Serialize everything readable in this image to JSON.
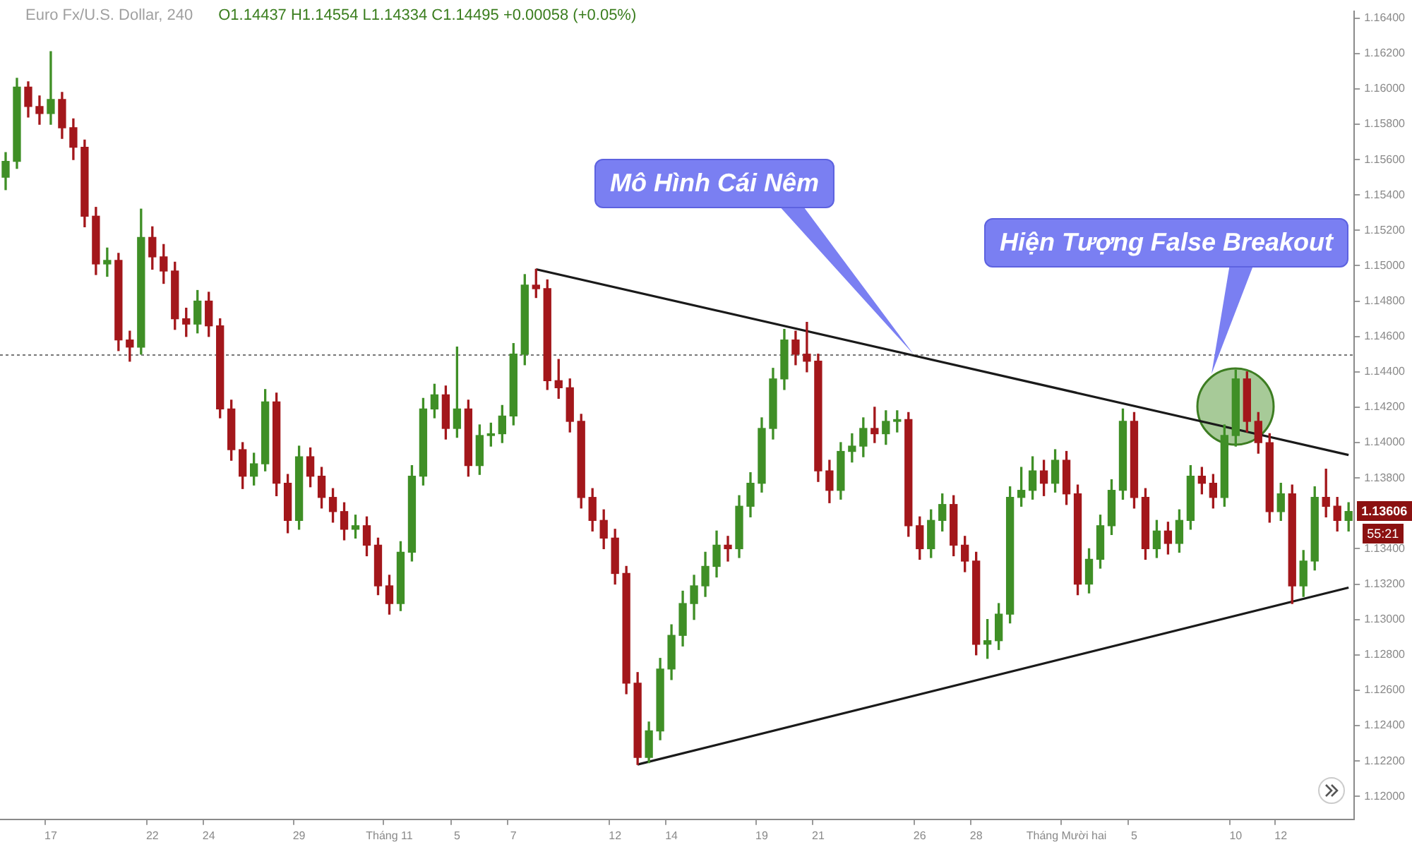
{
  "chart_data": {
    "type": "candlestick",
    "title": "Euro Fx/U.S. Dollar, 240",
    "subtitle": "O1.14437 H1.14554 L1.14334 C1.14495 +0.00058 (+0.05%)",
    "categories": [
      null,
      null,
      null,
      null,
      "17",
      null,
      null,
      null,
      null,
      null,
      null,
      null,
      null,
      "22",
      null,
      null,
      null,
      null,
      "24",
      null,
      null,
      null,
      null,
      null,
      null,
      null,
      "29",
      null,
      null,
      null,
      null,
      null,
      null,
      null,
      "Tháng 11",
      null,
      null,
      null,
      null,
      null,
      "5",
      null,
      null,
      null,
      null,
      "7",
      null,
      null,
      null,
      null,
      null,
      null,
      null,
      null,
      "12",
      null,
      null,
      null,
      null,
      "14",
      null,
      null,
      null,
      null,
      null,
      null,
      null,
      "19",
      null,
      null,
      null,
      null,
      "21",
      null,
      null,
      null,
      null,
      null,
      null,
      null,
      null,
      "26",
      null,
      null,
      null,
      null,
      "28",
      null,
      null,
      null,
      null,
      null,
      null,
      null,
      "Tháng Mười hai",
      null,
      null,
      null,
      null,
      null,
      "5",
      null,
      null,
      null,
      null,
      null,
      null,
      null,
      null,
      "10",
      null,
      null,
      null,
      "12",
      null,
      null,
      null,
      null,
      null,
      null
    ],
    "ohlc": [
      [
        1.155,
        1.1564,
        1.1543,
        1.1559
      ],
      [
        1.1559,
        1.1606,
        1.1555,
        1.1601
      ],
      [
        1.1601,
        1.1604,
        1.1584,
        1.159
      ],
      [
        1.159,
        1.1596,
        1.158,
        1.1586
      ],
      [
        1.1586,
        1.1621,
        1.158,
        1.1594
      ],
      [
        1.1594,
        1.1598,
        1.1572,
        1.1578
      ],
      [
        1.1578,
        1.1583,
        1.156,
        1.1567
      ],
      [
        1.1567,
        1.1571,
        1.1522,
        1.1528
      ],
      [
        1.1528,
        1.1533,
        1.1495,
        1.1501
      ],
      [
        1.1501,
        1.151,
        1.1494,
        1.1503
      ],
      [
        1.1503,
        1.1507,
        1.1452,
        1.1458
      ],
      [
        1.1458,
        1.1463,
        1.1446,
        1.1454
      ],
      [
        1.1454,
        1.1532,
        1.145,
        1.1516
      ],
      [
        1.1516,
        1.1522,
        1.1498,
        1.1505
      ],
      [
        1.1505,
        1.1512,
        1.149,
        1.1497
      ],
      [
        1.1497,
        1.1502,
        1.1464,
        1.147
      ],
      [
        1.147,
        1.1476,
        1.146,
        1.1467
      ],
      [
        1.1467,
        1.1486,
        1.1462,
        1.148
      ],
      [
        1.148,
        1.1485,
        1.146,
        1.1466
      ],
      [
        1.1466,
        1.147,
        1.1414,
        1.1419
      ],
      [
        1.1419,
        1.1424,
        1.139,
        1.1396
      ],
      [
        1.1396,
        1.14,
        1.1374,
        1.1381
      ],
      [
        1.1381,
        1.1394,
        1.1376,
        1.1388
      ],
      [
        1.1388,
        1.143,
        1.1384,
        1.1423
      ],
      [
        1.1423,
        1.1428,
        1.137,
        1.1377
      ],
      [
        1.1377,
        1.1382,
        1.1349,
        1.1356
      ],
      [
        1.1356,
        1.1398,
        1.1351,
        1.1392
      ],
      [
        1.1392,
        1.1397,
        1.1375,
        1.1381
      ],
      [
        1.1381,
        1.1386,
        1.1363,
        1.1369
      ],
      [
        1.1369,
        1.1374,
        1.1355,
        1.1361
      ],
      [
        1.1361,
        1.1366,
        1.1345,
        1.1351
      ],
      [
        1.1351,
        1.1359,
        1.1346,
        1.1353
      ],
      [
        1.1353,
        1.1358,
        1.1336,
        1.1342
      ],
      [
        1.1342,
        1.1346,
        1.1314,
        1.1319
      ],
      [
        1.1319,
        1.1325,
        1.1303,
        1.1309
      ],
      [
        1.1309,
        1.1344,
        1.1305,
        1.1338
      ],
      [
        1.1338,
        1.1387,
        1.1333,
        1.1381
      ],
      [
        1.1381,
        1.1425,
        1.1376,
        1.1419
      ],
      [
        1.1419,
        1.1433,
        1.1414,
        1.1427
      ],
      [
        1.1427,
        1.1432,
        1.1402,
        1.1408
      ],
      [
        1.1408,
        1.1454,
        1.1403,
        1.1419
      ],
      [
        1.1419,
        1.1424,
        1.1381,
        1.1387
      ],
      [
        1.1387,
        1.141,
        1.1382,
        1.1404
      ],
      [
        1.1404,
        1.1411,
        1.1398,
        1.1405
      ],
      [
        1.1405,
        1.1421,
        1.14,
        1.1415
      ],
      [
        1.1415,
        1.1456,
        1.141,
        1.145
      ],
      [
        1.145,
        1.1495,
        1.1444,
        1.1489
      ],
      [
        1.1489,
        1.1498,
        1.1482,
        1.1487
      ],
      [
        1.1487,
        1.1492,
        1.143,
        1.1435
      ],
      [
        1.1435,
        1.1447,
        1.1425,
        1.1431
      ],
      [
        1.1431,
        1.1436,
        1.1406,
        1.1412
      ],
      [
        1.1412,
        1.1416,
        1.1363,
        1.1369
      ],
      [
        1.1369,
        1.1374,
        1.135,
        1.1356
      ],
      [
        1.1356,
        1.1362,
        1.134,
        1.1346
      ],
      [
        1.1346,
        1.1351,
        1.132,
        1.1326
      ],
      [
        1.1326,
        1.133,
        1.1258,
        1.1264
      ],
      [
        1.1264,
        1.127,
        1.1218,
        1.1222
      ],
      [
        1.1222,
        1.1242,
        1.1219,
        1.1237
      ],
      [
        1.1237,
        1.1278,
        1.1232,
        1.1272
      ],
      [
        1.1272,
        1.1297,
        1.1266,
        1.1291
      ],
      [
        1.1291,
        1.1316,
        1.1285,
        1.1309
      ],
      [
        1.1309,
        1.1325,
        1.13,
        1.1319
      ],
      [
        1.1319,
        1.1338,
        1.1313,
        1.133
      ],
      [
        1.133,
        1.135,
        1.1324,
        1.1342
      ],
      [
        1.1342,
        1.1347,
        1.1333,
        1.134
      ],
      [
        1.134,
        1.137,
        1.1335,
        1.1364
      ],
      [
        1.1364,
        1.1383,
        1.1358,
        1.1377
      ],
      [
        1.1377,
        1.1414,
        1.1372,
        1.1408
      ],
      [
        1.1408,
        1.1442,
        1.1402,
        1.1436
      ],
      [
        1.1436,
        1.1464,
        1.143,
        1.1458
      ],
      [
        1.1458,
        1.1463,
        1.1444,
        1.145
      ],
      [
        1.145,
        1.1468,
        1.144,
        1.1446
      ],
      [
        1.1446,
        1.145,
        1.1378,
        1.1384
      ],
      [
        1.1384,
        1.139,
        1.1366,
        1.1373
      ],
      [
        1.1373,
        1.14,
        1.1368,
        1.1395
      ],
      [
        1.1395,
        1.1405,
        1.1389,
        1.1398
      ],
      [
        1.1398,
        1.1414,
        1.1392,
        1.1408
      ],
      [
        1.1408,
        1.142,
        1.14,
        1.1405
      ],
      [
        1.1405,
        1.1418,
        1.1399,
        1.1412
      ],
      [
        1.1412,
        1.1418,
        1.1406,
        1.1413
      ],
      [
        1.1413,
        1.1417,
        1.1347,
        1.1353
      ],
      [
        1.1353,
        1.1358,
        1.1334,
        1.134
      ],
      [
        1.134,
        1.1362,
        1.1335,
        1.1356
      ],
      [
        1.1356,
        1.1371,
        1.135,
        1.1365
      ],
      [
        1.1365,
        1.137,
        1.1336,
        1.1342
      ],
      [
        1.1342,
        1.1347,
        1.1327,
        1.1333
      ],
      [
        1.1333,
        1.1338,
        1.128,
        1.1286
      ],
      [
        1.1286,
        1.13,
        1.1278,
        1.1288
      ],
      [
        1.1288,
        1.1309,
        1.1283,
        1.1303
      ],
      [
        1.1303,
        1.1375,
        1.1298,
        1.1369
      ],
      [
        1.1369,
        1.1386,
        1.1364,
        1.1373
      ],
      [
        1.1373,
        1.1392,
        1.1368,
        1.1384
      ],
      [
        1.1384,
        1.139,
        1.137,
        1.1377
      ],
      [
        1.1377,
        1.1396,
        1.1372,
        1.139
      ],
      [
        1.139,
        1.1395,
        1.1365,
        1.1371
      ],
      [
        1.1371,
        1.1376,
        1.1314,
        1.132
      ],
      [
        1.132,
        1.134,
        1.1315,
        1.1334
      ],
      [
        1.1334,
        1.1359,
        1.1329,
        1.1353
      ],
      [
        1.1353,
        1.1379,
        1.1348,
        1.1373
      ],
      [
        1.1373,
        1.1419,
        1.1368,
        1.1412
      ],
      [
        1.1412,
        1.1417,
        1.1363,
        1.1369
      ],
      [
        1.1369,
        1.1374,
        1.1334,
        1.134
      ],
      [
        1.134,
        1.1356,
        1.1335,
        1.135
      ],
      [
        1.135,
        1.1355,
        1.1337,
        1.1343
      ],
      [
        1.1343,
        1.1362,
        1.1338,
        1.1356
      ],
      [
        1.1356,
        1.1387,
        1.1351,
        1.1381
      ],
      [
        1.1381,
        1.1386,
        1.1371,
        1.1377
      ],
      [
        1.1377,
        1.1382,
        1.1363,
        1.1369
      ],
      [
        1.1369,
        1.141,
        1.1364,
        1.1404
      ],
      [
        1.1404,
        1.1441,
        1.1398,
        1.1436
      ],
      [
        1.1436,
        1.144,
        1.1406,
        1.1412
      ],
      [
        1.1412,
        1.1417,
        1.1394,
        1.14
      ],
      [
        1.14,
        1.1405,
        1.1355,
        1.1361
      ],
      [
        1.1361,
        1.1377,
        1.1356,
        1.1371
      ],
      [
        1.1371,
        1.1376,
        1.1309,
        1.1319
      ],
      [
        1.1319,
        1.1339,
        1.1313,
        1.1333
      ],
      [
        1.1333,
        1.1375,
        1.1328,
        1.1369
      ],
      [
        1.1369,
        1.1385,
        1.1358,
        1.1364
      ],
      [
        1.1364,
        1.1369,
        1.135,
        1.1356
      ],
      [
        1.1356,
        1.1366,
        1.135,
        1.1361
      ]
    ],
    "colors": [
      "#3f8f26",
      "#3f8f26",
      "#a3171b",
      "#a3171b",
      "#3f8f26",
      "#a3171b",
      "#a3171b",
      "#a3171b",
      "#a3171b",
      "#3f8f26",
      "#a3171b",
      "#a3171b",
      "#3f8f26",
      "#a3171b",
      "#a3171b",
      "#a3171b",
      "#a3171b",
      "#3f8f26",
      "#a3171b",
      "#a3171b",
      "#a3171b",
      "#a3171b",
      "#3f8f26",
      "#3f8f26",
      "#a3171b",
      "#a3171b",
      "#3f8f26",
      "#a3171b",
      "#a3171b",
      "#a3171b",
      "#a3171b",
      "#3f8f26",
      "#a3171b",
      "#a3171b",
      "#a3171b",
      "#3f8f26",
      "#3f8f26",
      "#3f8f26",
      "#3f8f26",
      "#a3171b",
      "#3f8f26",
      "#a3171b",
      "#3f8f26",
      "#3f8f26",
      "#3f8f26",
      "#3f8f26",
      "#3f8f26",
      "#a3171b",
      "#a3171b",
      "#a3171b",
      "#a3171b",
      "#a3171b",
      "#a3171b",
      "#a3171b",
      "#a3171b",
      "#a3171b",
      "#a3171b",
      "#3f8f26",
      "#3f8f26",
      "#3f8f26",
      "#3f8f26",
      "#3f8f26",
      "#3f8f26",
      "#3f8f26",
      "#a3171b",
      "#3f8f26",
      "#3f8f26",
      "#3f8f26",
      "#3f8f26",
      "#3f8f26",
      "#a3171b",
      "#a3171b",
      "#a3171b",
      "#a3171b",
      "#3f8f26",
      "#3f8f26",
      "#3f8f26",
      "#a3171b",
      "#3f8f26",
      "#3f8f26",
      "#a3171b",
      "#a3171b",
      "#3f8f26",
      "#3f8f26",
      "#a3171b",
      "#a3171b",
      "#a3171b",
      "#3f8f26",
      "#3f8f26",
      "#3f8f26",
      "#3f8f26",
      "#3f8f26",
      "#a3171b",
      "#3f8f26",
      "#a3171b",
      "#a3171b",
      "#3f8f26",
      "#3f8f26",
      "#3f8f26",
      "#3f8f26",
      "#a3171b",
      "#a3171b",
      "#3f8f26",
      "#a3171b",
      "#3f8f26",
      "#3f8f26",
      "#a3171b",
      "#a3171b",
      "#3f8f26",
      "#3f8f26",
      "#a3171b",
      "#a3171b",
      "#a3171b",
      "#3f8f26",
      "#a3171b",
      "#3f8f26",
      "#3f8f26",
      "#a3171b",
      "#a3171b",
      "#3f8f26"
    ],
    "series": [
      {
        "type": "line",
        "values": [
          null,
          null,
          null,
          null,
          null,
          null,
          null,
          null,
          null,
          null,
          null,
          null,
          null,
          null,
          null,
          null,
          null,
          null,
          null,
          null,
          null,
          null,
          null,
          null,
          null,
          null,
          null,
          null,
          null,
          null,
          null,
          null,
          null,
          null,
          null,
          null,
          null,
          null,
          null,
          null,
          null,
          null,
          null,
          null,
          null,
          null,
          null,
          1.1498,
          null,
          null,
          null,
          null,
          null,
          null,
          null,
          null,
          null,
          null,
          null,
          null,
          null,
          null,
          null,
          null,
          null,
          null,
          null,
          null,
          null,
          null,
          null,
          null,
          null,
          null,
          null,
          null,
          null,
          null,
          null,
          null,
          null,
          null,
          null,
          null,
          null,
          null,
          null,
          null,
          null,
          null,
          null,
          null,
          null,
          null,
          null,
          null,
          null,
          null,
          null,
          null,
          null,
          null,
          null,
          null,
          null,
          null,
          null,
          null,
          null,
          null,
          null,
          null,
          null,
          null,
          null,
          null,
          null,
          null,
          null,
          1.1393
        ],
        "color": "#1a1a1a"
      },
      {
        "type": "line",
        "values": [
          null,
          null,
          null,
          null,
          null,
          null,
          null,
          null,
          null,
          null,
          null,
          null,
          null,
          null,
          null,
          null,
          null,
          null,
          null,
          null,
          null,
          null,
          null,
          null,
          null,
          null,
          null,
          null,
          null,
          null,
          null,
          null,
          null,
          null,
          null,
          null,
          null,
          null,
          null,
          null,
          null,
          null,
          null,
          null,
          null,
          null,
          null,
          null,
          null,
          null,
          null,
          null,
          null,
          null,
          null,
          null,
          1.1218,
          null,
          null,
          null,
          null,
          null,
          null,
          null,
          null,
          null,
          null,
          null,
          null,
          null,
          null,
          null,
          null,
          null,
          null,
          null,
          null,
          null,
          null,
          null,
          null,
          null,
          null,
          null,
          null,
          null,
          null,
          null,
          null,
          null,
          null,
          null,
          null,
          null,
          null,
          null,
          null,
          null,
          null,
          null,
          null,
          null,
          null,
          null,
          null,
          null,
          null,
          null,
          null,
          null,
          null,
          null,
          null,
          null,
          null,
          null,
          null,
          null,
          null,
          1.1318
        ],
        "color": "#1a1a1a"
      }
    ],
    "marker": "none",
    "line_style": "solid",
    "ylim": [
      1.1187,
      1.1644
    ],
    "yticks": [
      {
        "value": 1.12,
        "label": "1.12000"
      },
      {
        "value": 1.122,
        "label": "1.12200"
      },
      {
        "value": 1.124,
        "label": "1.12400"
      },
      {
        "value": 1.126,
        "label": "1.12600"
      },
      {
        "value": 1.128,
        "label": "1.12800"
      },
      {
        "value": 1.13,
        "label": "1.13000"
      },
      {
        "value": 1.132,
        "label": "1.13200"
      },
      {
        "value": 1.134,
        "label": "1.13400"
      },
      {
        "value": 1.138,
        "label": "1.13800"
      },
      {
        "value": 1.14,
        "label": "1.14000"
      },
      {
        "value": 1.142,
        "label": "1.14200"
      },
      {
        "value": 1.144,
        "label": "1.14400"
      },
      {
        "value": 1.146,
        "label": "1.14600"
      },
      {
        "value": 1.148,
        "label": "1.14800"
      },
      {
        "value": 1.15,
        "label": "1.15000"
      },
      {
        "value": 1.152,
        "label": "1.15200"
      },
      {
        "value": 1.154,
        "label": "1.15400"
      },
      {
        "value": 1.156,
        "label": "1.15600"
      },
      {
        "value": 1.158,
        "label": "1.15800"
      },
      {
        "value": 1.16,
        "label": "1.16000"
      },
      {
        "value": 1.162,
        "label": "1.16200"
      },
      {
        "value": 1.164,
        "label": "1.16400"
      }
    ],
    "ref_lines": [
      {
        "axis": "y",
        "value": 1.14495,
        "color": "#777777",
        "line_style": "dotted"
      }
    ],
    "annotations": [
      "Mô Hình Cái Nêm",
      "Hiện Tượng False Breakout",
      "1.13606",
      "55:21"
    ],
    "grid": false,
    "legend": false
  }
}
